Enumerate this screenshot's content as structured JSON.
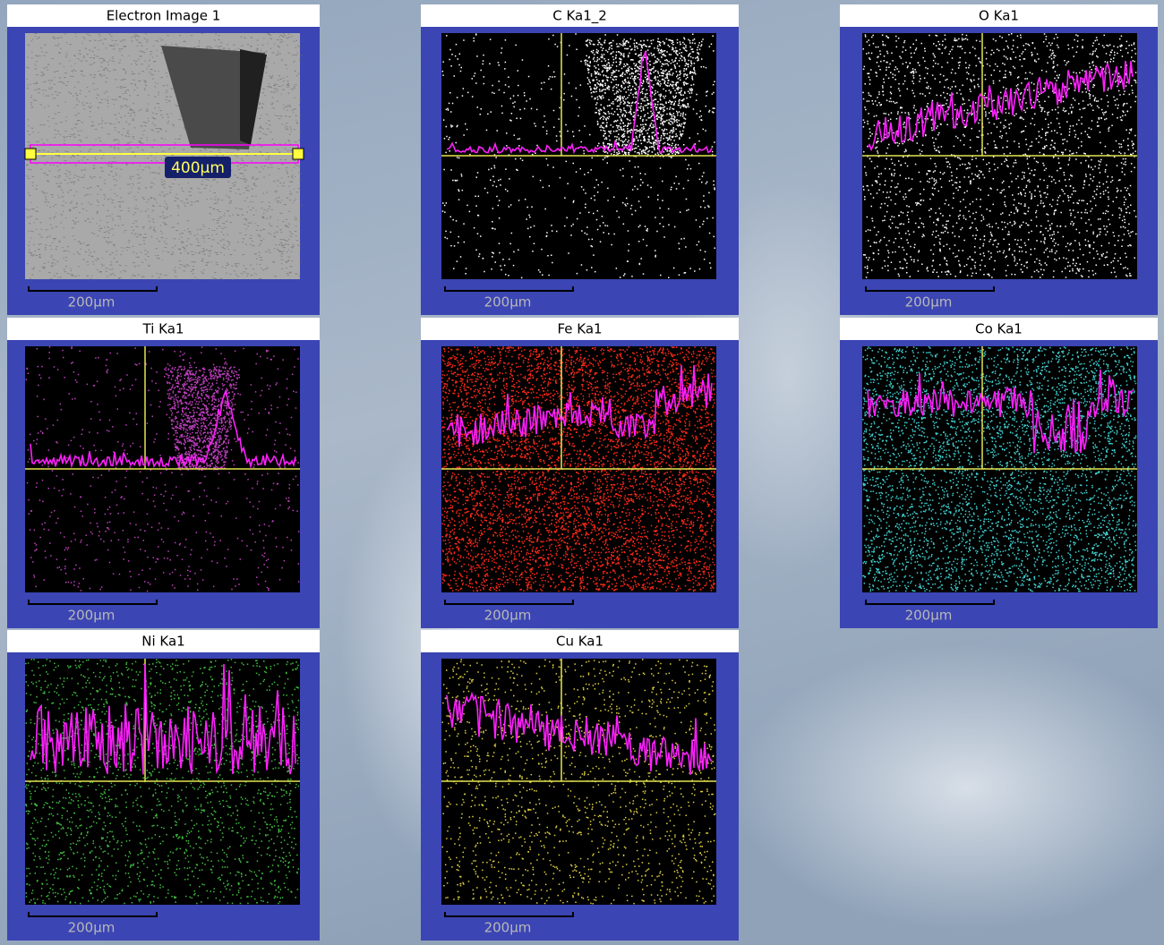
{
  "panels": [
    {
      "title": "Electron Image 1",
      "scale_bar": "200µm",
      "line_label": "400µm"
    },
    {
      "title": "C Ka1_2",
      "scale_bar": "200µm"
    },
    {
      "title": "O Ka1",
      "scale_bar": "200µm"
    },
    {
      "title": "Ti Ka1",
      "scale_bar": "200µm"
    },
    {
      "title": "Fe Ka1",
      "scale_bar": "200µm"
    },
    {
      "title": "Co Ka1",
      "scale_bar": "200µm"
    },
    {
      "title": "Ni Ka1",
      "scale_bar": "200µm"
    },
    {
      "title": "Cu Ka1",
      "scale_bar": "200µm"
    }
  ]
}
